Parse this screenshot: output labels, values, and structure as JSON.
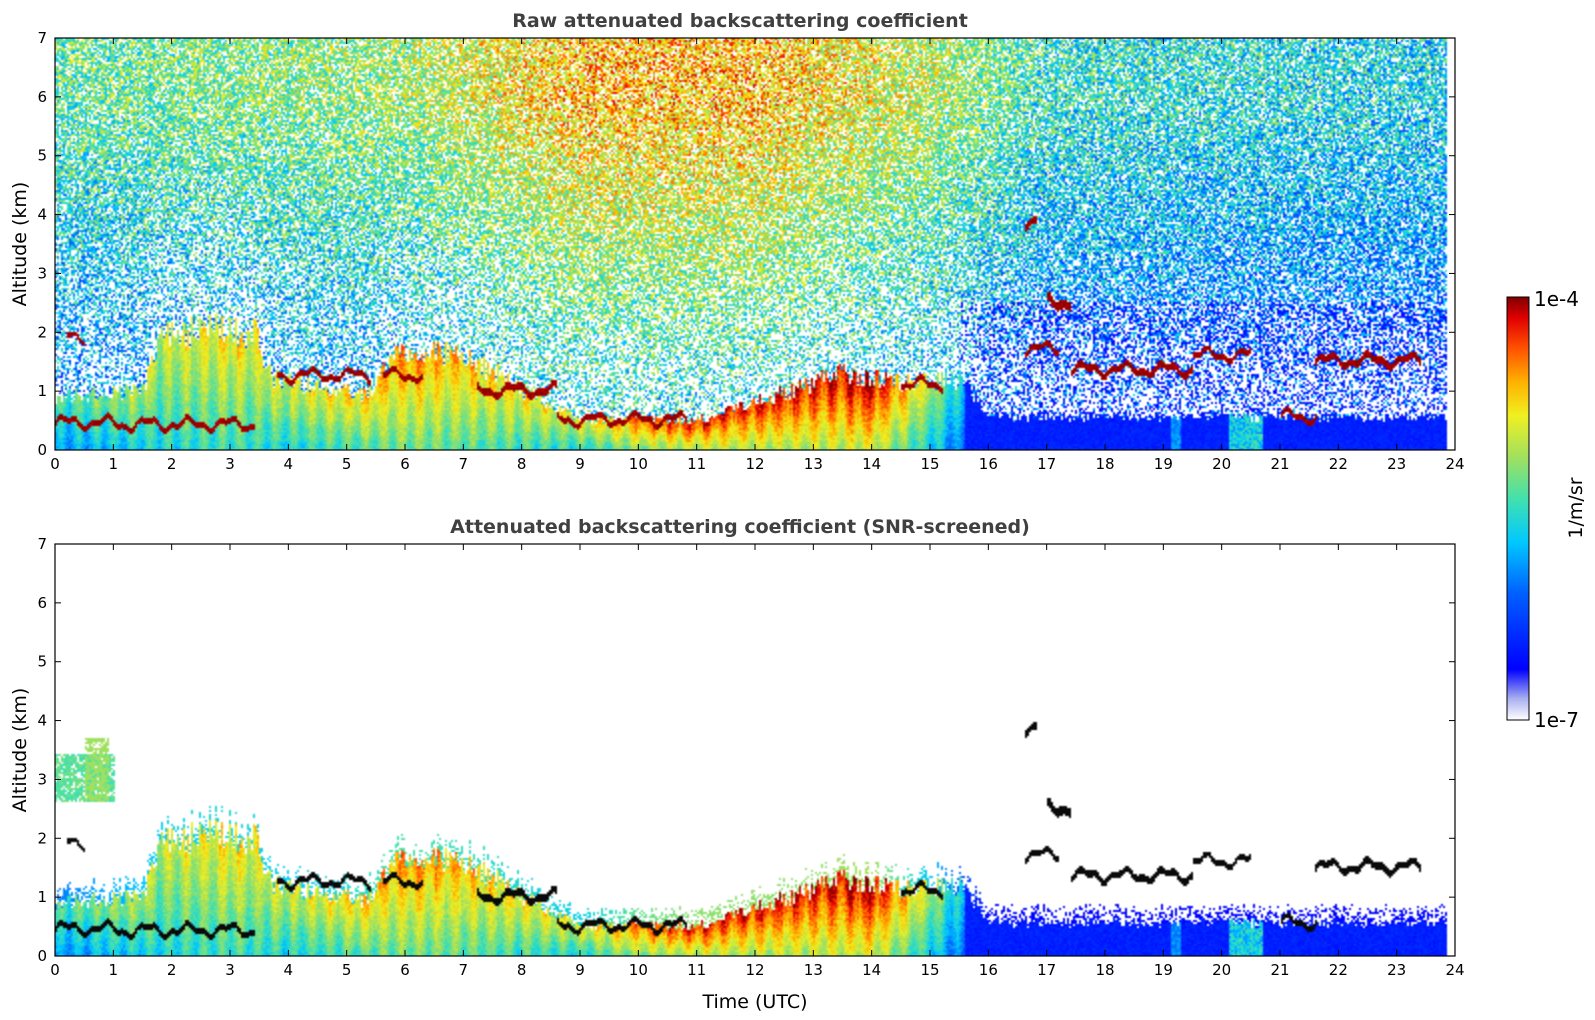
{
  "chart_data": [
    {
      "type": "heatmap",
      "title": "Raw attenuated backscattering coefficient",
      "xlabel": "",
      "ylabel": "Altitude (km)",
      "xlim": [
        0,
        24
      ],
      "ylim": [
        0,
        7
      ],
      "xticks": [
        0,
        1,
        2,
        3,
        4,
        5,
        6,
        7,
        8,
        9,
        10,
        11,
        12,
        13,
        14,
        15,
        16,
        17,
        18,
        19,
        20,
        21,
        22,
        23,
        24
      ],
      "yticks": [
        0,
        1,
        2,
        3,
        4,
        5,
        6,
        7
      ],
      "screened": false,
      "layers": [
        {
          "t0": 0.0,
          "t1": 1.0,
          "z": 0.45,
          "w": 0.05
        },
        {
          "t0": 1.0,
          "t1": 3.4,
          "z": 0.42,
          "w": 0.05
        },
        {
          "t0": 0.2,
          "t1": 0.5,
          "z": 1.9,
          "w": 0.04
        },
        {
          "t0": 3.8,
          "t1": 5.4,
          "z": 1.25,
          "w": 0.05
        },
        {
          "t0": 5.6,
          "t1": 6.3,
          "z": 1.25,
          "w": 0.05
        },
        {
          "t0": 7.2,
          "t1": 8.6,
          "z": 1.0,
          "w": 0.06
        },
        {
          "t0": 8.6,
          "t1": 10.8,
          "z": 0.5,
          "w": 0.05
        },
        {
          "t0": 14.5,
          "t1": 15.2,
          "z": 1.1,
          "w": 0.05
        },
        {
          "t0": 16.6,
          "t1": 17.2,
          "z": 1.7,
          "w": 0.05
        },
        {
          "t0": 17.0,
          "t1": 17.4,
          "z": 2.5,
          "w": 0.08
        },
        {
          "t0": 17.4,
          "t1": 19.5,
          "z": 1.35,
          "w": 0.06
        },
        {
          "t0": 19.5,
          "t1": 20.5,
          "z": 1.6,
          "w": 0.05
        },
        {
          "t0": 21.0,
          "t1": 21.6,
          "z": 0.55,
          "w": 0.05
        },
        {
          "t0": 21.6,
          "t1": 23.4,
          "z": 1.5,
          "w": 0.06
        },
        {
          "t0": 16.6,
          "t1": 16.8,
          "z": 3.85,
          "w": 0.06
        }
      ]
    },
    {
      "type": "heatmap",
      "title": "Attenuated backscattering coefficient (SNR-screened)",
      "xlabel": "Time (UTC)",
      "ylabel": "Altitude (km)",
      "xlim": [
        0,
        24
      ],
      "ylim": [
        0,
        7
      ],
      "xticks": [
        0,
        1,
        2,
        3,
        4,
        5,
        6,
        7,
        8,
        9,
        10,
        11,
        12,
        13,
        14,
        15,
        16,
        17,
        18,
        19,
        20,
        21,
        22,
        23,
        24
      ],
      "yticks": [
        0,
        1,
        2,
        3,
        4,
        5,
        6,
        7
      ],
      "screened": true
    }
  ],
  "colorbar": {
    "label": "1/m/sr",
    "max_label": "1e-4",
    "min_label": "1e-7",
    "range": [
      1e-07,
      0.0001
    ],
    "scale": "log",
    "colormap": [
      "#ffffff",
      "#aab0f0",
      "#0000ff",
      "#0060ff",
      "#00c8ff",
      "#30e0c0",
      "#a0e060",
      "#f0f020",
      "#ffb000",
      "#ff5000",
      "#e00000",
      "#800000"
    ]
  }
}
